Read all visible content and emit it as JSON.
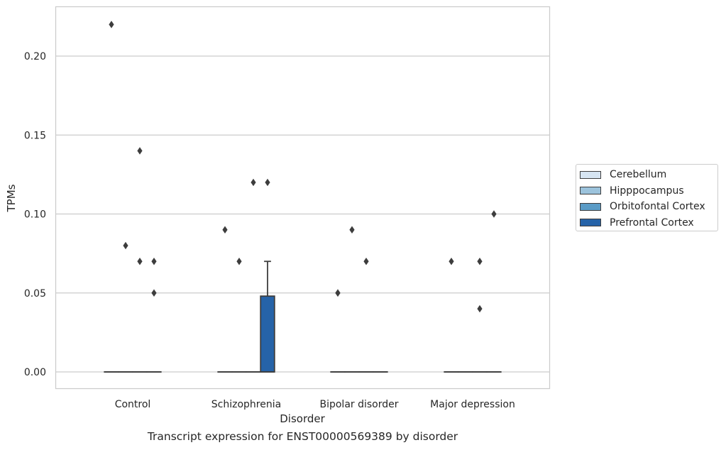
{
  "chart_data": {
    "type": "box",
    "title": "Transcript expression for ENST00000569389 by disorder",
    "xlabel": "Disorder",
    "ylabel": "TPMs",
    "ylim": [
      -0.011,
      0.232
    ],
    "yticks": [
      "0.00",
      "0.05",
      "0.10",
      "0.15",
      "0.20"
    ],
    "ytick_values": [
      0.0,
      0.05,
      0.1,
      0.15,
      0.2
    ],
    "grid": true,
    "legend_position": "right",
    "categories": [
      "Control",
      "Schizophrenia",
      "Bipolar disorder",
      "Major depression"
    ],
    "series": [
      {
        "name": "Cerebellum",
        "color": "#d6e5f2",
        "boxes": [
          {
            "category": "Control",
            "q1": 0,
            "median": 0,
            "q3": 0,
            "whisker_low": 0,
            "whisker_high": 0,
            "outliers": [
              0.22
            ]
          },
          {
            "category": "Schizophrenia",
            "q1": 0,
            "median": 0,
            "q3": 0,
            "whisker_low": 0,
            "whisker_high": 0,
            "outliers": [
              0.09
            ]
          },
          {
            "category": "Bipolar disorder",
            "q1": 0,
            "median": 0,
            "q3": 0,
            "whisker_low": 0,
            "whisker_high": 0,
            "outliers": [
              0.05,
              0.05
            ]
          },
          {
            "category": "Major depression",
            "q1": 0,
            "median": 0,
            "q3": 0,
            "whisker_low": 0,
            "whisker_high": 0,
            "outliers": [
              0.07
            ]
          }
        ]
      },
      {
        "name": "Hipppocampus",
        "color": "#9cc3dc",
        "boxes": [
          {
            "category": "Control",
            "q1": 0,
            "median": 0,
            "q3": 0,
            "whisker_low": 0,
            "whisker_high": 0,
            "outliers": [
              0.08
            ]
          },
          {
            "category": "Schizophrenia",
            "q1": 0,
            "median": 0,
            "q3": 0,
            "whisker_low": 0,
            "whisker_high": 0,
            "outliers": [
              0.07
            ]
          },
          {
            "category": "Bipolar disorder",
            "q1": 0,
            "median": 0,
            "q3": 0,
            "whisker_low": 0,
            "whisker_high": 0,
            "outliers": [
              0.09
            ]
          },
          {
            "category": "Major depression",
            "q1": 0,
            "median": 0,
            "q3": 0,
            "whisker_low": 0,
            "whisker_high": 0,
            "outliers": []
          }
        ]
      },
      {
        "name": "Orbitofontal Cortex",
        "color": "#5a9bc6",
        "boxes": [
          {
            "category": "Control",
            "q1": 0,
            "median": 0,
            "q3": 0,
            "whisker_low": 0,
            "whisker_high": 0,
            "outliers": [
              0.14,
              0.07
            ]
          },
          {
            "category": "Schizophrenia",
            "q1": 0,
            "median": 0,
            "q3": 0,
            "whisker_low": 0,
            "whisker_high": 0,
            "outliers": [
              0.12
            ]
          },
          {
            "category": "Bipolar disorder",
            "q1": 0,
            "median": 0,
            "q3": 0,
            "whisker_low": 0,
            "whisker_high": 0,
            "outliers": [
              0.07
            ]
          },
          {
            "category": "Major depression",
            "q1": 0,
            "median": 0,
            "q3": 0,
            "whisker_low": 0,
            "whisker_high": 0,
            "outliers": [
              0.07,
              0.04
            ]
          }
        ]
      },
      {
        "name": "Prefrontal Cortex",
        "color": "#2663a8",
        "boxes": [
          {
            "category": "Control",
            "q1": 0,
            "median": 0,
            "q3": 0,
            "whisker_low": 0,
            "whisker_high": 0,
            "outliers": [
              0.07,
              0.05
            ]
          },
          {
            "category": "Schizophrenia",
            "q1": 0,
            "median": 0,
            "q3": 0.048,
            "whisker_low": 0,
            "whisker_high": 0.07,
            "outliers": [
              0.12
            ]
          },
          {
            "category": "Bipolar disorder",
            "q1": 0,
            "median": 0,
            "q3": 0,
            "whisker_low": 0,
            "whisker_high": 0,
            "outliers": []
          },
          {
            "category": "Major depression",
            "q1": 0,
            "median": 0,
            "q3": 0,
            "whisker_low": 0,
            "whisker_high": 0,
            "outliers": [
              0.1
            ]
          }
        ]
      }
    ]
  }
}
